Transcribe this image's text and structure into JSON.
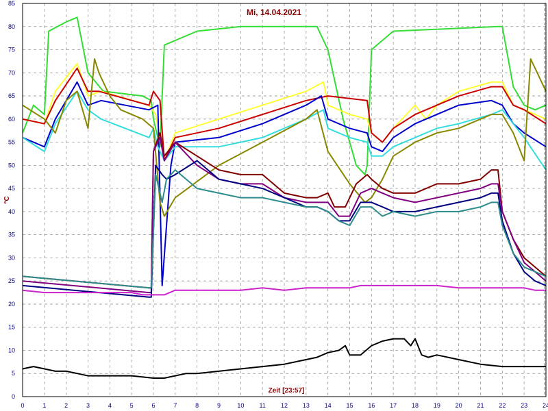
{
  "chart_data": {
    "type": "line",
    "title": "Mi, 14.04.2021",
    "xlabel": "Zeit [23:57]",
    "ylabel": "°C",
    "xlim": [
      0,
      24
    ],
    "ylim": [
      0,
      85
    ],
    "x_ticks": [
      0,
      1,
      2,
      3,
      4,
      5,
      6,
      7,
      8,
      9,
      10,
      11,
      12,
      13,
      14,
      15,
      16,
      17,
      18,
      19,
      20,
      21,
      22,
      23,
      24
    ],
    "y_ticks": [
      0,
      5,
      10,
      15,
      20,
      25,
      30,
      35,
      40,
      45,
      50,
      55,
      60,
      65,
      70,
      75,
      80,
      85
    ],
    "grid": true,
    "current_time": 23.95,
    "series": [
      {
        "color": "#33dd33",
        "x": [
          0,
          0.5,
          1,
          1.2,
          2,
          2.5,
          3,
          3.7,
          5.5,
          5.9,
          6,
          6.3,
          6.5,
          8,
          10,
          13.5,
          14,
          14.7,
          15.3,
          15.7,
          15.8,
          16,
          17,
          21.8,
          22,
          22.5,
          23,
          23.5,
          24
        ],
        "y": [
          57,
          63,
          61,
          79,
          81,
          82,
          70,
          66,
          65,
          64,
          60,
          54,
          76,
          79,
          80,
          80,
          75,
          60,
          50,
          48,
          50,
          75,
          79,
          80,
          80,
          67,
          63,
          62,
          63
        ]
      },
      {
        "color": "#ffff33",
        "x": [
          0,
          1,
          1.5,
          2.5,
          3,
          3.6,
          5.8,
          6.1,
          6.5,
          7,
          9,
          11,
          13,
          13.8,
          14,
          15,
          15.8,
          16,
          16.5,
          17,
          18,
          18.5,
          19,
          20,
          21.5,
          22,
          22.5,
          23,
          24
        ],
        "y": [
          60,
          59,
          66,
          72,
          65,
          66,
          63,
          61,
          51,
          57,
          60,
          63,
          66,
          68,
          63,
          61,
          60,
          57,
          55,
          58,
          63,
          60,
          63,
          66,
          68,
          68,
          63,
          62,
          60
        ]
      },
      {
        "color": "#cc0000",
        "x": [
          0,
          1,
          1.5,
          2.5,
          3,
          3.5,
          5.8,
          6,
          6.3,
          6.5,
          7,
          9,
          11,
          13,
          14,
          15.8,
          16,
          16.5,
          17,
          18,
          19,
          20,
          21.5,
          22,
          22.5,
          23,
          24
        ],
        "y": [
          60,
          59,
          64,
          71,
          66,
          66,
          63,
          66,
          64,
          51,
          56,
          58,
          61,
          64,
          65,
          64,
          57,
          55,
          58,
          61,
          63,
          65,
          67,
          67,
          63,
          62,
          59
        ]
      },
      {
        "color": "#0000cc",
        "x": [
          0,
          1,
          1.5,
          2.5,
          3,
          3.6,
          5.8,
          6.2,
          6.4,
          6.8,
          7,
          9,
          11,
          13,
          13.7,
          14,
          15,
          15.8,
          16,
          16.5,
          17,
          18,
          19,
          20,
          21.5,
          22,
          22.5,
          23,
          24
        ],
        "y": [
          56,
          54,
          60,
          68,
          63,
          64,
          62,
          63,
          24,
          50,
          55,
          56,
          59,
          63,
          65,
          60,
          58,
          57,
          54,
          53,
          56,
          59,
          61,
          63,
          64,
          63,
          59,
          57,
          54
        ]
      },
      {
        "color": "#33dddd",
        "x": [
          0,
          1,
          1.5,
          2.5,
          3,
          3.6,
          5.8,
          6,
          6.2,
          6.5,
          7,
          9,
          11,
          13,
          13.8,
          14,
          15,
          15.8,
          16,
          16.5,
          17,
          18,
          19,
          20,
          21.5,
          22,
          22.5,
          23,
          24
        ],
        "y": [
          56,
          53,
          59,
          66,
          62,
          60,
          56,
          58,
          54,
          51,
          54,
          54,
          56,
          60,
          62,
          58,
          56,
          55,
          52,
          52,
          54,
          56,
          58,
          59,
          61,
          62,
          59,
          56,
          49
        ]
      },
      {
        "color": "#888800",
        "x": [
          0,
          1,
          1.5,
          2,
          2.5,
          3,
          3.3,
          3.5,
          4,
          4.5,
          5.5,
          6,
          6.3,
          6.5,
          7,
          9,
          11,
          13,
          13.5,
          14,
          15,
          15.7,
          16,
          16.5,
          17,
          18,
          19,
          20,
          21.5,
          22,
          22.5,
          23,
          23.3,
          23.6,
          24
        ],
        "y": [
          63,
          60,
          57,
          64,
          66,
          58,
          73,
          70,
          65,
          62,
          60,
          58,
          42,
          39,
          43,
          50,
          55,
          60,
          62,
          53,
          46,
          42,
          43,
          47,
          52,
          55,
          57,
          58,
          61,
          61,
          57,
          51,
          73,
          70,
          66
        ]
      },
      {
        "color": "#800000",
        "x": [
          0,
          5.8,
          5.9,
          6,
          6.3,
          6.5,
          7,
          8,
          9,
          10,
          11,
          12,
          13,
          13.5,
          14,
          14.3,
          14.8,
          15.3,
          15.8,
          16,
          16.5,
          17,
          18,
          19,
          20,
          21,
          21.5,
          21.8,
          22,
          22.5,
          23,
          24
        ],
        "y": [
          26,
          23.5,
          23.5,
          53,
          57,
          52,
          55,
          52,
          49,
          48,
          48,
          44,
          43,
          43,
          44,
          41,
          41,
          46,
          48,
          47,
          45,
          44,
          44,
          46,
          46,
          47,
          49,
          49,
          40,
          34,
          30,
          26
        ]
      },
      {
        "color": "#800080",
        "x": [
          0,
          5.8,
          5.9,
          6,
          6.3,
          6.5,
          7,
          8,
          9,
          10,
          11,
          12,
          13,
          13.5,
          14,
          14.5,
          15,
          15.5,
          16,
          16.5,
          17,
          18,
          19,
          20,
          21,
          21.5,
          21.8,
          22,
          22.5,
          23,
          24
        ],
        "y": [
          25,
          22.5,
          22.5,
          53,
          56,
          51,
          55,
          50,
          47,
          46,
          46,
          43,
          42,
          42,
          42,
          39,
          39,
          44,
          45,
          44,
          43,
          42,
          43,
          44,
          45,
          46,
          46,
          40,
          34,
          29,
          25
        ]
      },
      {
        "color": "#000080",
        "x": [
          0,
          5.8,
          5.9,
          6.1,
          6.4,
          6.6,
          7,
          8,
          9,
          10,
          11,
          12,
          13,
          13.5,
          14,
          14.5,
          15,
          15.5,
          16,
          16.5,
          17,
          18,
          19,
          20,
          21,
          21.5,
          21.8,
          22,
          22.5,
          23,
          23.5,
          24
        ],
        "y": [
          24,
          21.5,
          21.5,
          50,
          48,
          47,
          48,
          51,
          47,
          46,
          45,
          43,
          41,
          41,
          40,
          38,
          38,
          42,
          42,
          41,
          40,
          40,
          41,
          42,
          43,
          44,
          44,
          38,
          31,
          27,
          25,
          24
        ]
      },
      {
        "color": "#2e8b8b",
        "x": [
          0,
          5.8,
          5.9,
          6.1,
          6.4,
          6.6,
          7,
          8,
          9,
          10,
          11,
          12,
          13,
          13.5,
          14,
          14.5,
          15,
          15.5,
          16,
          16.5,
          17,
          18,
          19,
          20,
          21,
          21.5,
          21.8,
          22,
          22.5,
          23,
          23.5,
          24
        ],
        "y": [
          26,
          23.5,
          23.5,
          48,
          42,
          47,
          49,
          45,
          44,
          43,
          43,
          42,
          41,
          41,
          40,
          38,
          37,
          41,
          41,
          39,
          40,
          39,
          40,
          40,
          41,
          42,
          42,
          37,
          31,
          28,
          27,
          26
        ]
      },
      {
        "color": "#cc22cc",
        "x": [
          0,
          1,
          2,
          3,
          5,
          5.5,
          6,
          6.5,
          7,
          8,
          9,
          10,
          11,
          12,
          13,
          14,
          15,
          15.5,
          16,
          17,
          18,
          19,
          20,
          21,
          22,
          23,
          23.5,
          24
        ],
        "y": [
          23,
          22.5,
          22.5,
          22.5,
          22.5,
          22,
          22,
          22,
          23,
          23,
          23,
          23,
          23.5,
          23,
          23.5,
          23.5,
          23.5,
          24,
          24,
          24,
          24,
          24,
          23.5,
          23.5,
          23.5,
          23.5,
          23,
          23
        ]
      },
      {
        "color": "#000000",
        "x": [
          0,
          0.5,
          1,
          1.5,
          2,
          2.5,
          3,
          4,
          5,
          6,
          6.5,
          7,
          7.5,
          8,
          9,
          10,
          11,
          12,
          13,
          13.5,
          14,
          14.5,
          14.8,
          15,
          15.5,
          16,
          16.5,
          17,
          17.5,
          17.8,
          18,
          18.3,
          18.6,
          19,
          20,
          21,
          22,
          23,
          23.5,
          24
        ],
        "y": [
          6,
          6.5,
          6,
          5.5,
          5.5,
          5,
          4.5,
          4.5,
          4.5,
          4,
          4,
          4.5,
          5,
          5,
          5.5,
          6,
          6.5,
          7,
          8,
          8.5,
          9.5,
          10,
          11,
          9,
          9,
          11,
          12,
          12.5,
          12.5,
          11,
          12.5,
          9,
          8.5,
          9,
          8,
          7,
          6.5,
          6.5,
          6.5,
          6.5
        ]
      }
    ]
  }
}
